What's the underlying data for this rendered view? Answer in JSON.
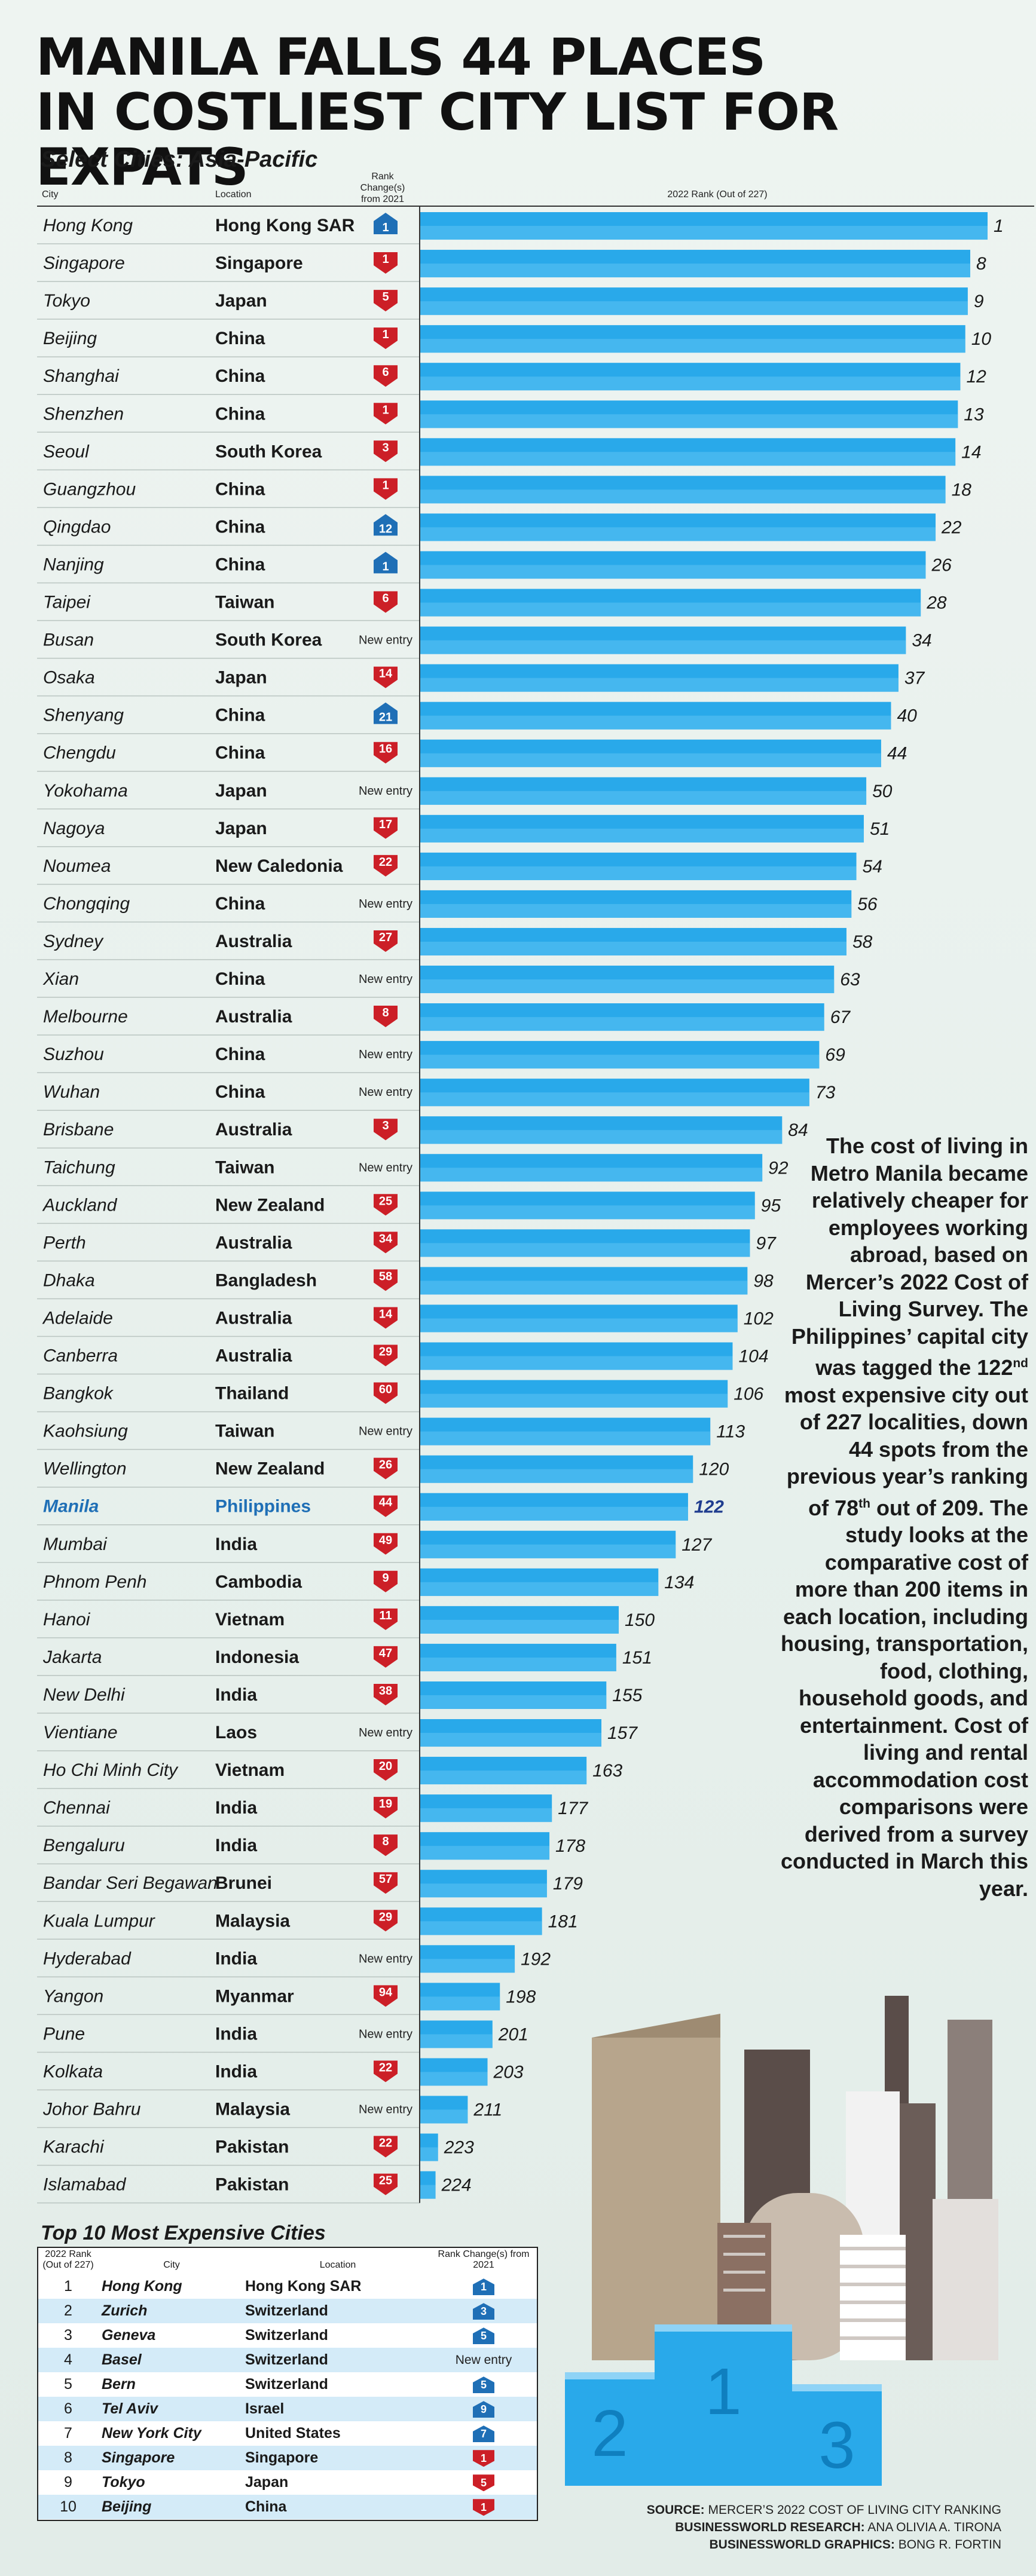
{
  "title": {
    "line1": "MANILA FALLS 44 PLACES",
    "line2": "IN COSTLIEST CITY LIST FOR EXPATS"
  },
  "subtitle": "Select Cities: Asia-Pacific",
  "headers": {
    "city": "City",
    "location": "Location",
    "rank_change": "Rank Change(s) from 2021",
    "rank_2022": "2022 Rank (Out of 227)"
  },
  "colors": {
    "bar": "#29a9ea",
    "bar_light": "#5cc3f2",
    "up": "#1f6fb6",
    "down": "#cc1f27",
    "highlight": "#1f6fb6"
  },
  "chart_data": {
    "type": "bar",
    "orientation": "horizontal",
    "title": "2022 Rank (Out of 227)",
    "highlight": "Manila",
    "rows": [
      {
        "city": "Hong Kong",
        "location": "Hong Kong SAR",
        "change": "up",
        "change_value": "1",
        "rank": 1
      },
      {
        "city": "Singapore",
        "location": "Singapore",
        "change": "down",
        "change_value": "1",
        "rank": 8
      },
      {
        "city": "Tokyo",
        "location": "Japan",
        "change": "down",
        "change_value": "5",
        "rank": 9
      },
      {
        "city": "Beijing",
        "location": "China",
        "change": "down",
        "change_value": "1",
        "rank": 10
      },
      {
        "city": "Shanghai",
        "location": "China",
        "change": "down",
        "change_value": "6",
        "rank": 12
      },
      {
        "city": "Shenzhen",
        "location": "China",
        "change": "down",
        "change_value": "1",
        "rank": 13
      },
      {
        "city": "Seoul",
        "location": "South Korea",
        "change": "down",
        "change_value": "3",
        "rank": 14
      },
      {
        "city": "Guangzhou",
        "location": "China",
        "change": "down",
        "change_value": "1",
        "rank": 18
      },
      {
        "city": "Qingdao",
        "location": "China",
        "change": "up",
        "change_value": "12",
        "rank": 22
      },
      {
        "city": "Nanjing",
        "location": "China",
        "change": "up",
        "change_value": "1",
        "rank": 26
      },
      {
        "city": "Taipei",
        "location": "Taiwan",
        "change": "down",
        "change_value": "6",
        "rank": 28
      },
      {
        "city": "Busan",
        "location": "South Korea",
        "change": "new",
        "change_value": "New entry",
        "rank": 34
      },
      {
        "city": "Osaka",
        "location": "Japan",
        "change": "down",
        "change_value": "14",
        "rank": 37
      },
      {
        "city": "Shenyang",
        "location": "China",
        "change": "up",
        "change_value": "21",
        "rank": 40
      },
      {
        "city": "Chengdu",
        "location": "China",
        "change": "down",
        "change_value": "16",
        "rank": 44
      },
      {
        "city": "Yokohama",
        "location": "Japan",
        "change": "new",
        "change_value": "New entry",
        "rank": 50
      },
      {
        "city": "Nagoya",
        "location": "Japan",
        "change": "down",
        "change_value": "17",
        "rank": 51
      },
      {
        "city": "Noumea",
        "location": "New Caledonia",
        "change": "down",
        "change_value": "22",
        "rank": 54
      },
      {
        "city": "Chongqing",
        "location": "China",
        "change": "new",
        "change_value": "New entry",
        "rank": 56
      },
      {
        "city": "Sydney",
        "location": "Australia",
        "change": "down",
        "change_value": "27",
        "rank": 58
      },
      {
        "city": "Xian",
        "location": "China",
        "change": "new",
        "change_value": "New entry",
        "rank": 63
      },
      {
        "city": "Melbourne",
        "location": "Australia",
        "change": "down",
        "change_value": "8",
        "rank": 67
      },
      {
        "city": "Suzhou",
        "location": "China",
        "change": "new",
        "change_value": "New entry",
        "rank": 69
      },
      {
        "city": "Wuhan",
        "location": "China",
        "change": "new",
        "change_value": "New entry",
        "rank": 73
      },
      {
        "city": "Brisbane",
        "location": "Australia",
        "change": "down",
        "change_value": "3",
        "rank": 84
      },
      {
        "city": "Taichung",
        "location": "Taiwan",
        "change": "new",
        "change_value": "New entry",
        "rank": 92
      },
      {
        "city": "Auckland",
        "location": "New Zealand",
        "change": "down",
        "change_value": "25",
        "rank": 95
      },
      {
        "city": "Perth",
        "location": "Australia",
        "change": "down",
        "change_value": "34",
        "rank": 97
      },
      {
        "city": "Dhaka",
        "location": "Bangladesh",
        "change": "down",
        "change_value": "58",
        "rank": 98
      },
      {
        "city": "Adelaide",
        "location": "Australia",
        "change": "down",
        "change_value": "14",
        "rank": 102
      },
      {
        "city": "Canberra",
        "location": "Australia",
        "change": "down",
        "change_value": "29",
        "rank": 104
      },
      {
        "city": "Bangkok",
        "location": "Thailand",
        "change": "down",
        "change_value": "60",
        "rank": 106
      },
      {
        "city": "Kaohsiung",
        "location": "Taiwan",
        "change": "new",
        "change_value": "New entry",
        "rank": 113
      },
      {
        "city": "Wellington",
        "location": "New Zealand",
        "change": "down",
        "change_value": "26",
        "rank": 120
      },
      {
        "city": "Manila",
        "location": "Philippines",
        "change": "down",
        "change_value": "44",
        "rank": 122
      },
      {
        "city": "Mumbai",
        "location": "India",
        "change": "down",
        "change_value": "49",
        "rank": 127
      },
      {
        "city": "Phnom Penh",
        "location": "Cambodia",
        "change": "down",
        "change_value": "9",
        "rank": 134
      },
      {
        "city": "Hanoi",
        "location": "Vietnam",
        "change": "down",
        "change_value": "11",
        "rank": 150
      },
      {
        "city": "Jakarta",
        "location": "Indonesia",
        "change": "down",
        "change_value": "47",
        "rank": 151
      },
      {
        "city": "New Delhi",
        "location": "India",
        "change": "down",
        "change_value": "38",
        "rank": 155
      },
      {
        "city": "Vientiane",
        "location": "Laos",
        "change": "new",
        "change_value": "New entry",
        "rank": 157
      },
      {
        "city": "Ho Chi Minh City",
        "location": "Vietnam",
        "change": "down",
        "change_value": "20",
        "rank": 163
      },
      {
        "city": "Chennai",
        "location": "India",
        "change": "down",
        "change_value": "19",
        "rank": 177
      },
      {
        "city": "Bengaluru",
        "location": "India",
        "change": "down",
        "change_value": "8",
        "rank": 178
      },
      {
        "city": "Bandar Seri Begawan",
        "location": "Brunei",
        "change": "down",
        "change_value": "57",
        "rank": 179
      },
      {
        "city": "Kuala Lumpur",
        "location": "Malaysia",
        "change": "down",
        "change_value": "29",
        "rank": 181
      },
      {
        "city": "Hyderabad",
        "location": "India",
        "change": "new",
        "change_value": "New entry",
        "rank": 192
      },
      {
        "city": "Yangon",
        "location": "Myanmar",
        "change": "down",
        "change_value": "94",
        "rank": 198
      },
      {
        "city": "Pune",
        "location": "India",
        "change": "new",
        "change_value": "New entry",
        "rank": 201
      },
      {
        "city": "Kolkata",
        "location": "India",
        "change": "down",
        "change_value": "22",
        "rank": 203
      },
      {
        "city": "Johor Bahru",
        "location": "Malaysia",
        "change": "new",
        "change_value": "New entry",
        "rank": 211
      },
      {
        "city": "Karachi",
        "location": "Pakistan",
        "change": "down",
        "change_value": "22",
        "rank": 223
      },
      {
        "city": "Islamabad",
        "location": "Pakistan",
        "change": "down",
        "change_value": "25",
        "rank": 224
      }
    ]
  },
  "paragraph": {
    "before": "The cost of living in Metro Manila became relatively cheaper for employees working abroad, based on Mercer’s 2022 Cost of Living Survey. The Philippines’ capital city was tagged the 122",
    "sup1": "nd",
    "middle": " most expensive city out of 227 localities, down 44 spots from the previous year’s ranking of 78",
    "sup2": "th",
    "after": " out of 209. The study looks at the comparative cost of more than 200 items in each location, including housing, transportation, food, clothing, household goods, and entertainment. Cost of living and rental accommodation cost comparisons were derived from a survey conducted in March this year."
  },
  "top10": {
    "title": "Top 10 Most Expensive Cities",
    "headers": {
      "rank": "2022 Rank (Out of 227)",
      "city": "City",
      "location": "Location",
      "change": "Rank Change(s) from 2021"
    },
    "rows": [
      {
        "rank": "1",
        "city": "Hong Kong",
        "location": "Hong Kong SAR",
        "change": "up",
        "change_value": "1"
      },
      {
        "rank": "2",
        "city": "Zurich",
        "location": "Switzerland",
        "change": "up",
        "change_value": "3"
      },
      {
        "rank": "3",
        "city": "Geneva",
        "location": "Switzerland",
        "change": "up",
        "change_value": "5"
      },
      {
        "rank": "4",
        "city": "Basel",
        "location": "Switzerland",
        "change": "new",
        "change_value": "New entry"
      },
      {
        "rank": "5",
        "city": "Bern",
        "location": "Switzerland",
        "change": "up",
        "change_value": "5"
      },
      {
        "rank": "6",
        "city": "Tel Aviv",
        "location": "Israel",
        "change": "up",
        "change_value": "9"
      },
      {
        "rank": "7",
        "city": "New York City",
        "location": "United States",
        "change": "up",
        "change_value": "7"
      },
      {
        "rank": "8",
        "city": "Singapore",
        "location": "Singapore",
        "change": "down",
        "change_value": "1"
      },
      {
        "rank": "9",
        "city": "Tokyo",
        "location": "Japan",
        "change": "down",
        "change_value": "5"
      },
      {
        "rank": "10",
        "city": "Beijing",
        "location": "China",
        "change": "down",
        "change_value": "1"
      }
    ]
  },
  "podium": {
    "first": "1",
    "second": "2",
    "third": "3"
  },
  "credits": {
    "source_label": "SOURCE:",
    "source": "MERCER’S 2022 COST OF LIVING CITY RANKING",
    "research_label": "BUSINESSWORLD RESEARCH:",
    "research": "ANA OLIVIA A. TIRONA",
    "graphics_label": "BUSINESSWORLD GRAPHICS:",
    "graphics": "BONG R. FORTIN"
  }
}
